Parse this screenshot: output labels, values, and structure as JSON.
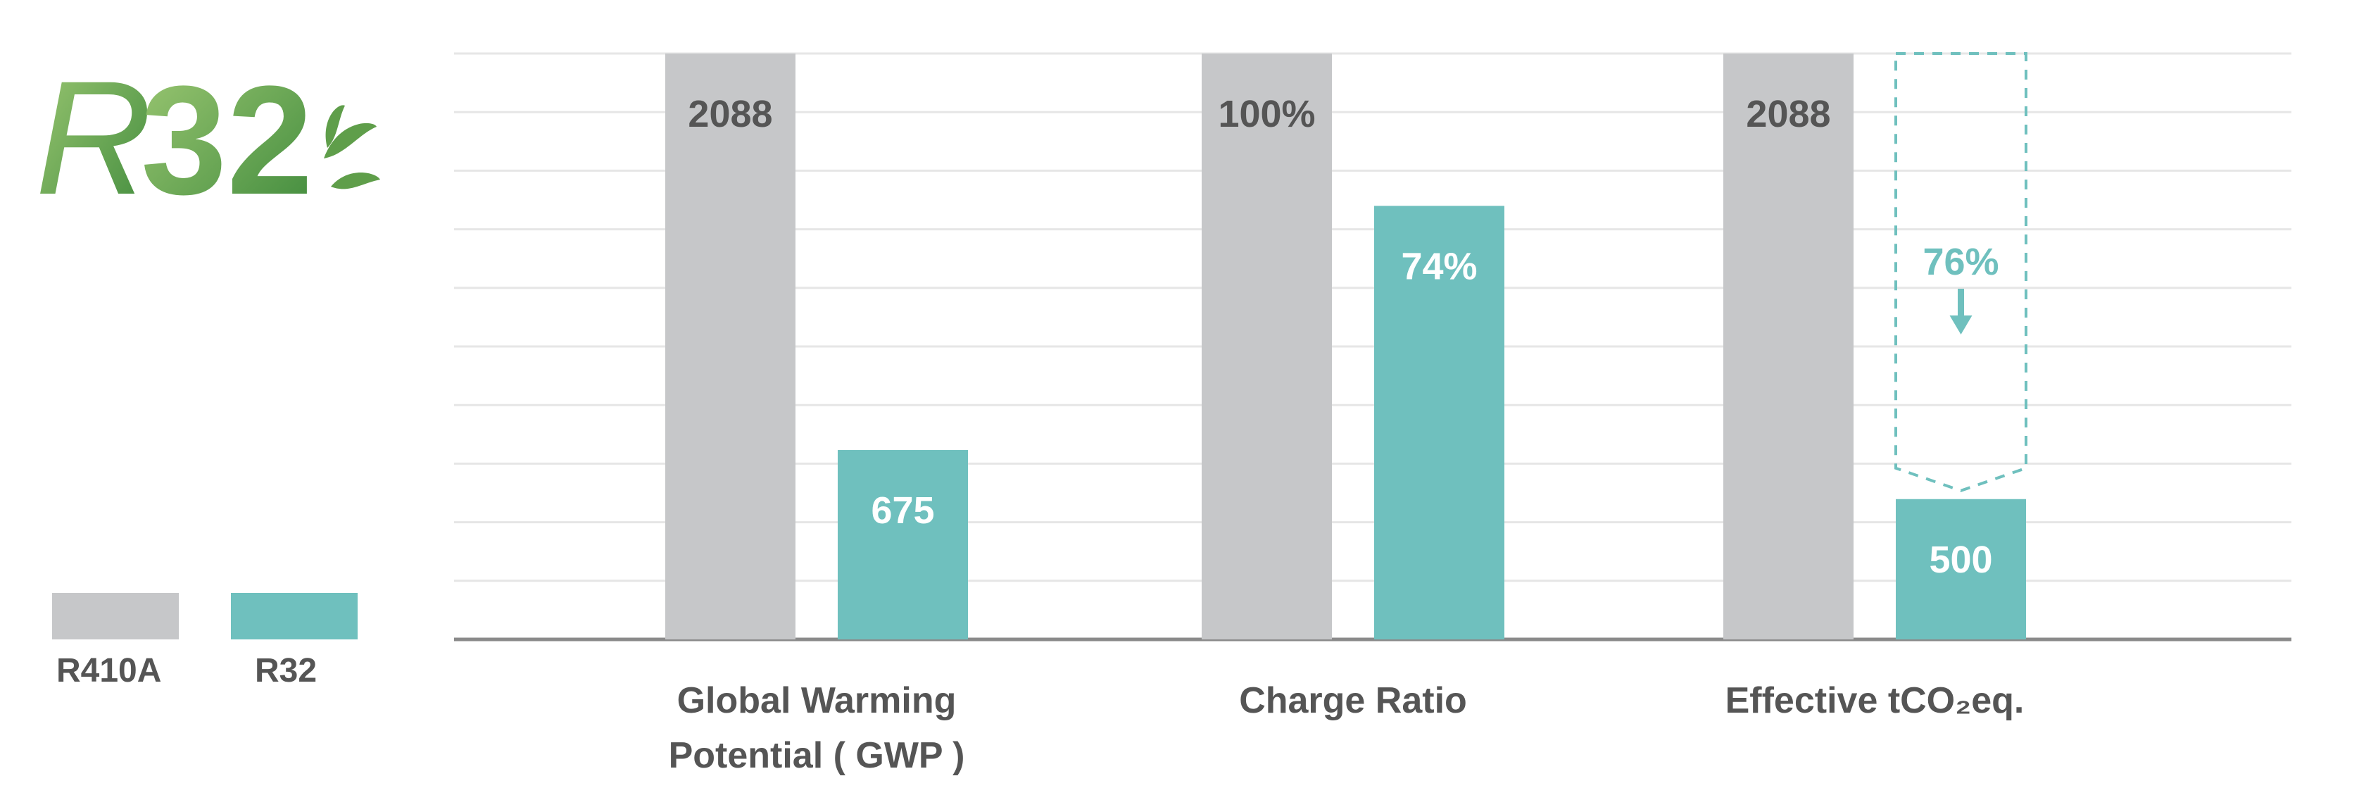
{
  "logo": {
    "text_r": "R",
    "text_num": "32"
  },
  "legend": [
    {
      "name": "R410A",
      "color": "#c6c7c9"
    },
    {
      "name": "R32",
      "color": "#6fc0be"
    }
  ],
  "colors": {
    "grid": "#e6e6e6",
    "axis": "#8a8a8a",
    "tick": "#555555",
    "r32_label": "#6fc0be",
    "bar_label_r410a": "#555555",
    "bar_label_r32": "#ffffff"
  },
  "chart_data": {
    "type": "bar",
    "categories": [
      "Global Warming\nPotential ( GWP )",
      "Charge Ratio",
      "Effective tCO₂eq."
    ],
    "series": [
      {
        "name": "R410A",
        "color": "#c6c7c9",
        "values": [
          2088,
          100,
          2088
        ],
        "labels": [
          "2088",
          "100%",
          "2088"
        ]
      },
      {
        "name": "R32",
        "color": "#6fc0be",
        "values": [
          675,
          74,
          500
        ],
        "labels": [
          "675",
          "74%",
          "500"
        ]
      }
    ],
    "scales": [
      "per-category (R410A = full height)"
    ],
    "annotation": {
      "category": 2,
      "text": "76%",
      "arrow": "down",
      "dashed_outline": true
    },
    "grid": true,
    "legend_position": "bottom-left"
  }
}
